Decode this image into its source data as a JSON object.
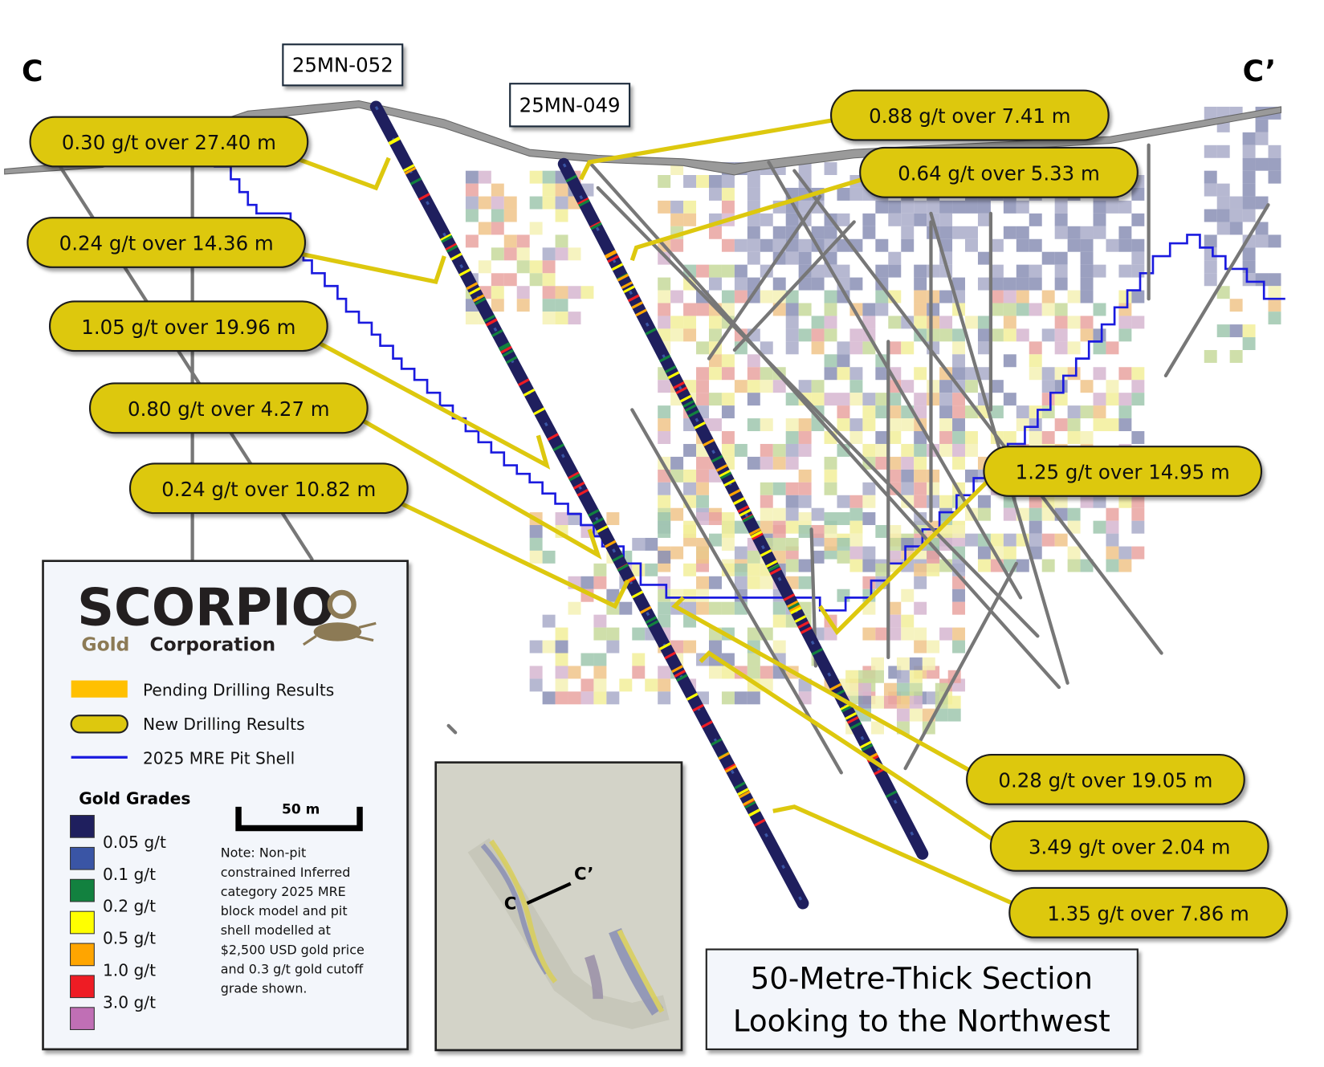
{
  "section": {
    "start_label": "C",
    "end_label": "C’",
    "title_line1": "50-Metre-Thick Section",
    "title_line2": "Looking to the Northwest"
  },
  "drill_holes": [
    {
      "id": "25MN-052"
    },
    {
      "id": "25MN-049"
    }
  ],
  "callouts": [
    {
      "text": "0.30 g/t over 27.40 m"
    },
    {
      "text": "0.24 g/t over 14.36 m"
    },
    {
      "text": "1.05 g/t over 19.96 m"
    },
    {
      "text": "0.80 g/t over 4.27 m"
    },
    {
      "text": "0.24 g/t over 10.82 m"
    },
    {
      "text": "0.88 g/t over 7.41 m"
    },
    {
      "text": "0.64 g/t over 5.33 m"
    },
    {
      "text": "1.25 g/t over 14.95 m"
    },
    {
      "text": "0.28 g/t over 19.05 m"
    },
    {
      "text": "3.49 g/t over 2.04 m"
    },
    {
      "text": "1.35 g/t over 7.86 m"
    }
  ],
  "legend": {
    "logo_main": "SCORPIO",
    "logo_sub_gold": "Gold",
    "logo_sub_corp": "Corporation",
    "items": [
      {
        "label": "Pending Drilling Results",
        "color": "#ffc000"
      },
      {
        "label": "New Drilling Results",
        "color": "#ddc80e"
      },
      {
        "label": "2025 MRE Pit Shell",
        "color": "#1a1adf"
      }
    ],
    "grades_title": "Gold Grades",
    "grades": [
      {
        "label": "0.05 g/t",
        "color": "#1f1f5e"
      },
      {
        "label": "0.1   g/t",
        "color": "#3a55a5"
      },
      {
        "label": "0.2   g/t",
        "color": "#12813f"
      },
      {
        "label": "0.5   g/t",
        "color": "#ffff00"
      },
      {
        "label": "1.0   g/t",
        "color": "#ffa500"
      },
      {
        "label": "3.0   g/t",
        "color": "#ee1c24"
      },
      {
        "label": "",
        "color": "#c06fb5"
      }
    ],
    "scale_label": "50 m",
    "note_lines": [
      "Note: Non-pit",
      "constrained Inferred",
      "category 2025 MRE",
      "block model and pit",
      "shell modelled at",
      "$2,500 USD gold price",
      "and 0.3 g/t gold cutoff",
      "grade shown."
    ]
  },
  "inset_map": {
    "start_label": "C",
    "end_label": "C’"
  }
}
